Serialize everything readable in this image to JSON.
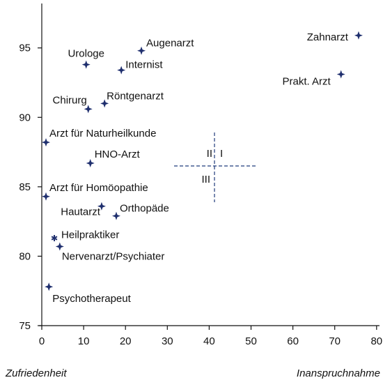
{
  "chart_data": {
    "type": "scatter",
    "labels": [
      "Zahnarzt",
      "Prakt. Arzt",
      "Augenarzt",
      "Urologe",
      "Internist",
      "Chirurg",
      "Röntgenarzt",
      "Arzt für Naturheilkunde",
      "HNO-Arzt",
      "Arzt für Homöopathie",
      "Hautarzt",
      "Orthopäde",
      "Heilpraktiker",
      "Nervenarzt/Psychiater",
      "Psychotherapeut"
    ],
    "x": [
      75.7,
      71.5,
      23.8,
      10.6,
      19.0,
      11.1,
      15.0,
      1.0,
      11.6,
      1.0,
      14.3,
      17.8,
      3.0,
      4.3,
      1.7
    ],
    "y": [
      95.9,
      93.1,
      94.8,
      93.8,
      93.4,
      90.6,
      91.0,
      88.2,
      86.7,
      84.3,
      83.6,
      82.9,
      81.3,
      80.7,
      77.8
    ],
    "color": "#1f2f6e",
    "xlim": [
      0,
      81
    ],
    "ylim": [
      75,
      98.2
    ],
    "xticks": [
      0,
      10,
      20,
      30,
      40,
      50,
      60,
      70,
      80
    ],
    "yticks": [
      75,
      80,
      85,
      90,
      95
    ],
    "ylabel": "Zufriedenheit",
    "xlabel": "Inanspruchnahme",
    "quadrant_labels": [
      "II",
      "I",
      "III"
    ]
  }
}
